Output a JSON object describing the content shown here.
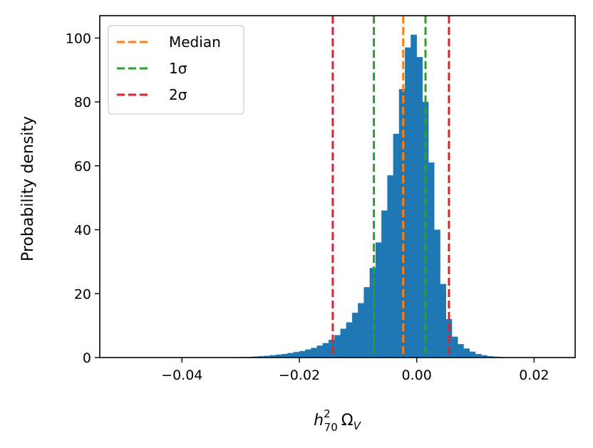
{
  "chart_data": {
    "type": "histogram",
    "title": "",
    "xlabel": "h²₇₀ Ω_V",
    "xlabel_parts": {
      "base": "h",
      "sup": "2",
      "sub": "70",
      "omega": "Ω",
      "omega_sub": "V"
    },
    "ylabel": "Probability density",
    "xlim": [
      -0.054,
      0.027
    ],
    "ylim": [
      0,
      107
    ],
    "xticks": [
      {
        "value": -0.04,
        "label": "−0.04"
      },
      {
        "value": -0.02,
        "label": "−0.02"
      },
      {
        "value": 0.0,
        "label": "0.00"
      },
      {
        "value": 0.02,
        "label": "0.02"
      }
    ],
    "yticks": [
      {
        "value": 0,
        "label": "0"
      },
      {
        "value": 20,
        "label": "20"
      },
      {
        "value": 40,
        "label": "40"
      },
      {
        "value": 60,
        "label": "60"
      },
      {
        "value": 80,
        "label": "80"
      },
      {
        "value": 100,
        "label": "100"
      }
    ],
    "histogram": {
      "color": "#1f77b4",
      "bins": [
        {
          "x0": -0.032,
          "x1": -0.031,
          "value": 0.05
        },
        {
          "x0": -0.031,
          "x1": -0.03,
          "value": 0.1
        },
        {
          "x0": -0.03,
          "x1": -0.029,
          "value": 0.15
        },
        {
          "x0": -0.029,
          "x1": -0.028,
          "value": 0.2
        },
        {
          "x0": -0.028,
          "x1": -0.027,
          "value": 0.3
        },
        {
          "x0": -0.027,
          "x1": -0.026,
          "value": 0.4
        },
        {
          "x0": -0.026,
          "x1": -0.025,
          "value": 0.5
        },
        {
          "x0": -0.025,
          "x1": -0.024,
          "value": 0.7
        },
        {
          "x0": -0.024,
          "x1": -0.023,
          "value": 0.9
        },
        {
          "x0": -0.023,
          "x1": -0.022,
          "value": 1.1
        },
        {
          "x0": -0.022,
          "x1": -0.021,
          "value": 1.4
        },
        {
          "x0": -0.021,
          "x1": -0.02,
          "value": 1.7
        },
        {
          "x0": -0.02,
          "x1": -0.019,
          "value": 2.0
        },
        {
          "x0": -0.019,
          "x1": -0.018,
          "value": 2.5
        },
        {
          "x0": -0.018,
          "x1": -0.017,
          "value": 3.0
        },
        {
          "x0": -0.017,
          "x1": -0.016,
          "value": 3.7
        },
        {
          "x0": -0.016,
          "x1": -0.015,
          "value": 4.5
        },
        {
          "x0": -0.015,
          "x1": -0.014,
          "value": 5.5
        },
        {
          "x0": -0.014,
          "x1": -0.013,
          "value": 7
        },
        {
          "x0": -0.013,
          "x1": -0.012,
          "value": 9
        },
        {
          "x0": -0.012,
          "x1": -0.011,
          "value": 11
        },
        {
          "x0": -0.011,
          "x1": -0.01,
          "value": 14
        },
        {
          "x0": -0.01,
          "x1": -0.009,
          "value": 17
        },
        {
          "x0": -0.009,
          "x1": -0.008,
          "value": 22
        },
        {
          "x0": -0.008,
          "x1": -0.007,
          "value": 28
        },
        {
          "x0": -0.007,
          "x1": -0.006,
          "value": 36
        },
        {
          "x0": -0.006,
          "x1": -0.005,
          "value": 46
        },
        {
          "x0": -0.005,
          "x1": -0.004,
          "value": 57
        },
        {
          "x0": -0.004,
          "x1": -0.003,
          "value": 70
        },
        {
          "x0": -0.003,
          "x1": -0.002,
          "value": 84
        },
        {
          "x0": -0.002,
          "x1": -0.001,
          "value": 97
        },
        {
          "x0": -0.001,
          "x1": 0.0,
          "value": 101
        },
        {
          "x0": 0.0,
          "x1": 0.001,
          "value": 94
        },
        {
          "x0": 0.001,
          "x1": 0.002,
          "value": 80
        },
        {
          "x0": 0.002,
          "x1": 0.003,
          "value": 61
        },
        {
          "x0": 0.003,
          "x1": 0.004,
          "value": 40
        },
        {
          "x0": 0.004,
          "x1": 0.005,
          "value": 23
        },
        {
          "x0": 0.005,
          "x1": 0.006,
          "value": 12
        },
        {
          "x0": 0.006,
          "x1": 0.007,
          "value": 6.5
        },
        {
          "x0": 0.007,
          "x1": 0.008,
          "value": 4.2
        },
        {
          "x0": 0.008,
          "x1": 0.009,
          "value": 2.8
        },
        {
          "x0": 0.009,
          "x1": 0.01,
          "value": 1.8
        },
        {
          "x0": 0.01,
          "x1": 0.011,
          "value": 1.1
        },
        {
          "x0": 0.011,
          "x1": 0.012,
          "value": 0.7
        },
        {
          "x0": 0.012,
          "x1": 0.013,
          "value": 0.4
        },
        {
          "x0": 0.013,
          "x1": 0.014,
          "value": 0.25
        },
        {
          "x0": 0.014,
          "x1": 0.015,
          "value": 0.15
        },
        {
          "x0": 0.015,
          "x1": 0.016,
          "value": 0.08
        }
      ]
    },
    "vlines": [
      {
        "name": "Median",
        "value": -0.0023,
        "color": "#ff7f0e"
      },
      {
        "name": "1σ",
        "value": -0.0073,
        "color": "#2ca02c"
      },
      {
        "name": "1σ",
        "value": 0.0015,
        "color": "#2ca02c"
      },
      {
        "name": "2σ",
        "value": -0.0143,
        "color": "#d62728"
      },
      {
        "name": "2σ",
        "value": 0.0055,
        "color": "#d62728"
      }
    ],
    "legend": {
      "position": "top-left",
      "entries": [
        {
          "label": "Median",
          "color": "#ff7f0e"
        },
        {
          "label": "1σ",
          "color": "#2ca02c"
        },
        {
          "label": "2σ",
          "color": "#d62728"
        }
      ]
    }
  }
}
